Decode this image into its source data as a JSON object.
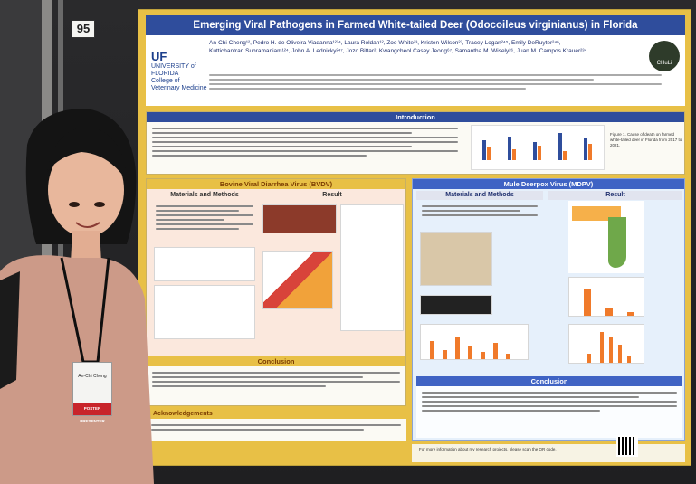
{
  "booth": {
    "number": "95"
  },
  "poster": {
    "title": "Emerging Viral Pathogens in Farmed White-tailed Deer (Odocoileus virginianus) in Florida",
    "authors_line1": "An-Chi Cheng¹², Pedro H. de Oliveira Viadanna¹²³⁴, Laura Roldan¹², Zoe White²³, Kristen Wilson²³, Tracey Logan²⁴⁵, Emily DeRuyter²⁴⁶,",
    "authors_line2": "Kuttichantran Subramaniam¹²⁴, John A. Lednicky²⁴⁷, Jozo Bittar², Kwangcheol Casey Jeong⁶⁷, Samantha M. Wisely²⁶, Juan M. Campos Krauer²³⁴",
    "logo_uf": "UF",
    "logo_univ": "UNIVERSITY of FLORIDA",
    "logo_sub": "College of Veterinary Medicine",
    "lab_logo": "CHuLi",
    "intro_header": "Introduction",
    "intro_caption": "Figure 1. Cause of death on farmed white-tailed deer in Florida from 2017 to 2021.",
    "bvdv_header": "Bovine Viral Diarrhea Virus (BVDV)",
    "mdpv_header": "Mule Deerpox Virus (MDPV)",
    "materials_label": "Materials and Methods",
    "result_label": "Result",
    "conclusion_label": "Conclusion",
    "ack_label": "Acknowledgements",
    "footer_text": "For more information about my research projects, please scan the QR code."
  },
  "presenter_badge": {
    "name_line": "An-Chi Cheng",
    "ribbon": "POSTER PRESENTER"
  },
  "chart_colors": {
    "bar_orange": "#f07a2a",
    "bar_blue": "#2f4d9c",
    "header_blue": "#2f4d9c"
  }
}
